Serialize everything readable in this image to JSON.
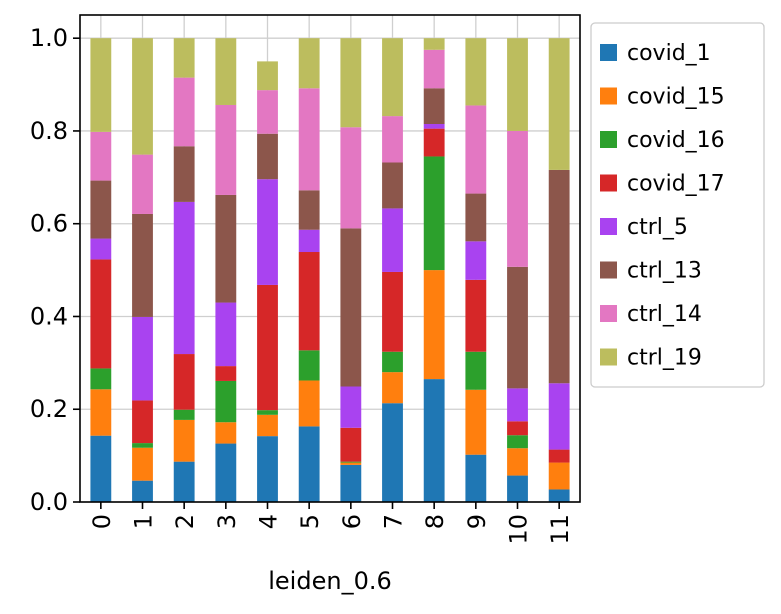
{
  "chart_data": {
    "type": "bar",
    "stacked": true,
    "title": "",
    "xlabel": "leiden_0.6",
    "ylabel": "",
    "ylim": [
      0,
      1.05
    ],
    "yticks": [
      "0.0",
      "0.2",
      "0.4",
      "0.6",
      "0.8",
      "1.0"
    ],
    "ytick_values": [
      0,
      0.2,
      0.4,
      0.6,
      0.8,
      1.0
    ],
    "grid": true,
    "legend_position": "outside-right",
    "categories": [
      "0",
      "1",
      "2",
      "3",
      "4",
      "5",
      "6",
      "7",
      "8",
      "9",
      "10",
      "11"
    ],
    "series": [
      {
        "name": "covid_1",
        "color": "#1f77b4",
        "values": [
          0.143,
          0.046,
          0.087,
          0.126,
          0.142,
          0.163,
          0.08,
          0.213,
          0.265,
          0.102,
          0.057,
          0.027
        ]
      },
      {
        "name": "covid_15",
        "color": "#ff7f0e",
        "values": [
          0.1,
          0.071,
          0.09,
          0.046,
          0.046,
          0.099,
          0.005,
          0.067,
          0.235,
          0.14,
          0.059,
          0.058
        ]
      },
      {
        "name": "covid_16",
        "color": "#2ca02c",
        "values": [
          0.045,
          0.01,
          0.022,
          0.089,
          0.01,
          0.065,
          0.002,
          0.044,
          0.245,
          0.082,
          0.028,
          0.0
        ]
      },
      {
        "name": "covid_17",
        "color": "#d62728",
        "values": [
          0.235,
          0.092,
          0.12,
          0.032,
          0.27,
          0.212,
          0.073,
          0.172,
          0.06,
          0.155,
          0.03,
          0.028
        ]
      },
      {
        "name": "ctrl_5",
        "color": "#a943f0",
        "values": [
          0.045,
          0.18,
          0.328,
          0.137,
          0.228,
          0.048,
          0.089,
          0.137,
          0.01,
          0.083,
          0.071,
          0.143
        ]
      },
      {
        "name": "ctrl_13",
        "color": "#8c564b",
        "values": [
          0.125,
          0.222,
          0.12,
          0.232,
          0.098,
          0.085,
          0.341,
          0.099,
          0.077,
          0.103,
          0.262,
          0.46
        ]
      },
      {
        "name": "ctrl_14",
        "color": "#e377c2",
        "values": [
          0.105,
          0.128,
          0.148,
          0.194,
          0.094,
          0.22,
          0.218,
          0.1,
          0.083,
          0.19,
          0.293,
          0.0
        ]
      },
      {
        "name": "ctrl_19",
        "color": "#bcbd5e",
        "values": [
          0.202,
          0.251,
          0.085,
          0.144,
          0.062,
          0.108,
          0.192,
          0.168,
          0.025,
          0.145,
          0.2,
          0.284
        ]
      }
    ]
  }
}
